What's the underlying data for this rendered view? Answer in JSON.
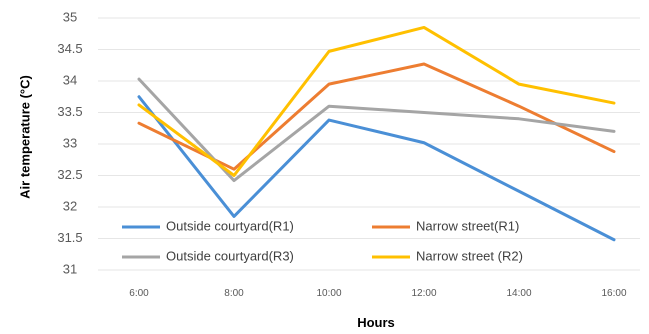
{
  "chart_data": {
    "type": "line",
    "title": "",
    "xlabel": "Hours",
    "ylabel": "Air temperature (°C)",
    "categories": [
      "6:00",
      "8:00",
      "10:00",
      "12:00",
      "14:00",
      "16:00"
    ],
    "ylim": [
      31,
      35
    ],
    "yticks": [
      "31",
      "31.5",
      "32",
      "32.5",
      "33",
      "33.5",
      "34",
      "34.5",
      "35"
    ],
    "grid": true,
    "legend_position": "bottom-left, inside plot area, two columns",
    "series": [
      {
        "name": "Outside courtyard(R1)",
        "color": "#4a8fd6",
        "values": [
          33.75,
          31.85,
          33.38,
          33.02,
          32.25,
          31.48
        ]
      },
      {
        "name": "Narrow street(R1)",
        "color": "#ed7d31",
        "values": [
          33.33,
          32.6,
          33.95,
          34.27,
          33.6,
          32.88
        ]
      },
      {
        "name": "Outside courtyard(R3)",
        "color": "#a5a5a5",
        "values": [
          34.03,
          32.42,
          33.6,
          33.5,
          33.4,
          33.2
        ]
      },
      {
        "name": "Narrow street (R2)",
        "color": "#ffc000",
        "values": [
          33.62,
          32.5,
          34.47,
          34.85,
          33.95,
          33.65
        ]
      }
    ]
  }
}
